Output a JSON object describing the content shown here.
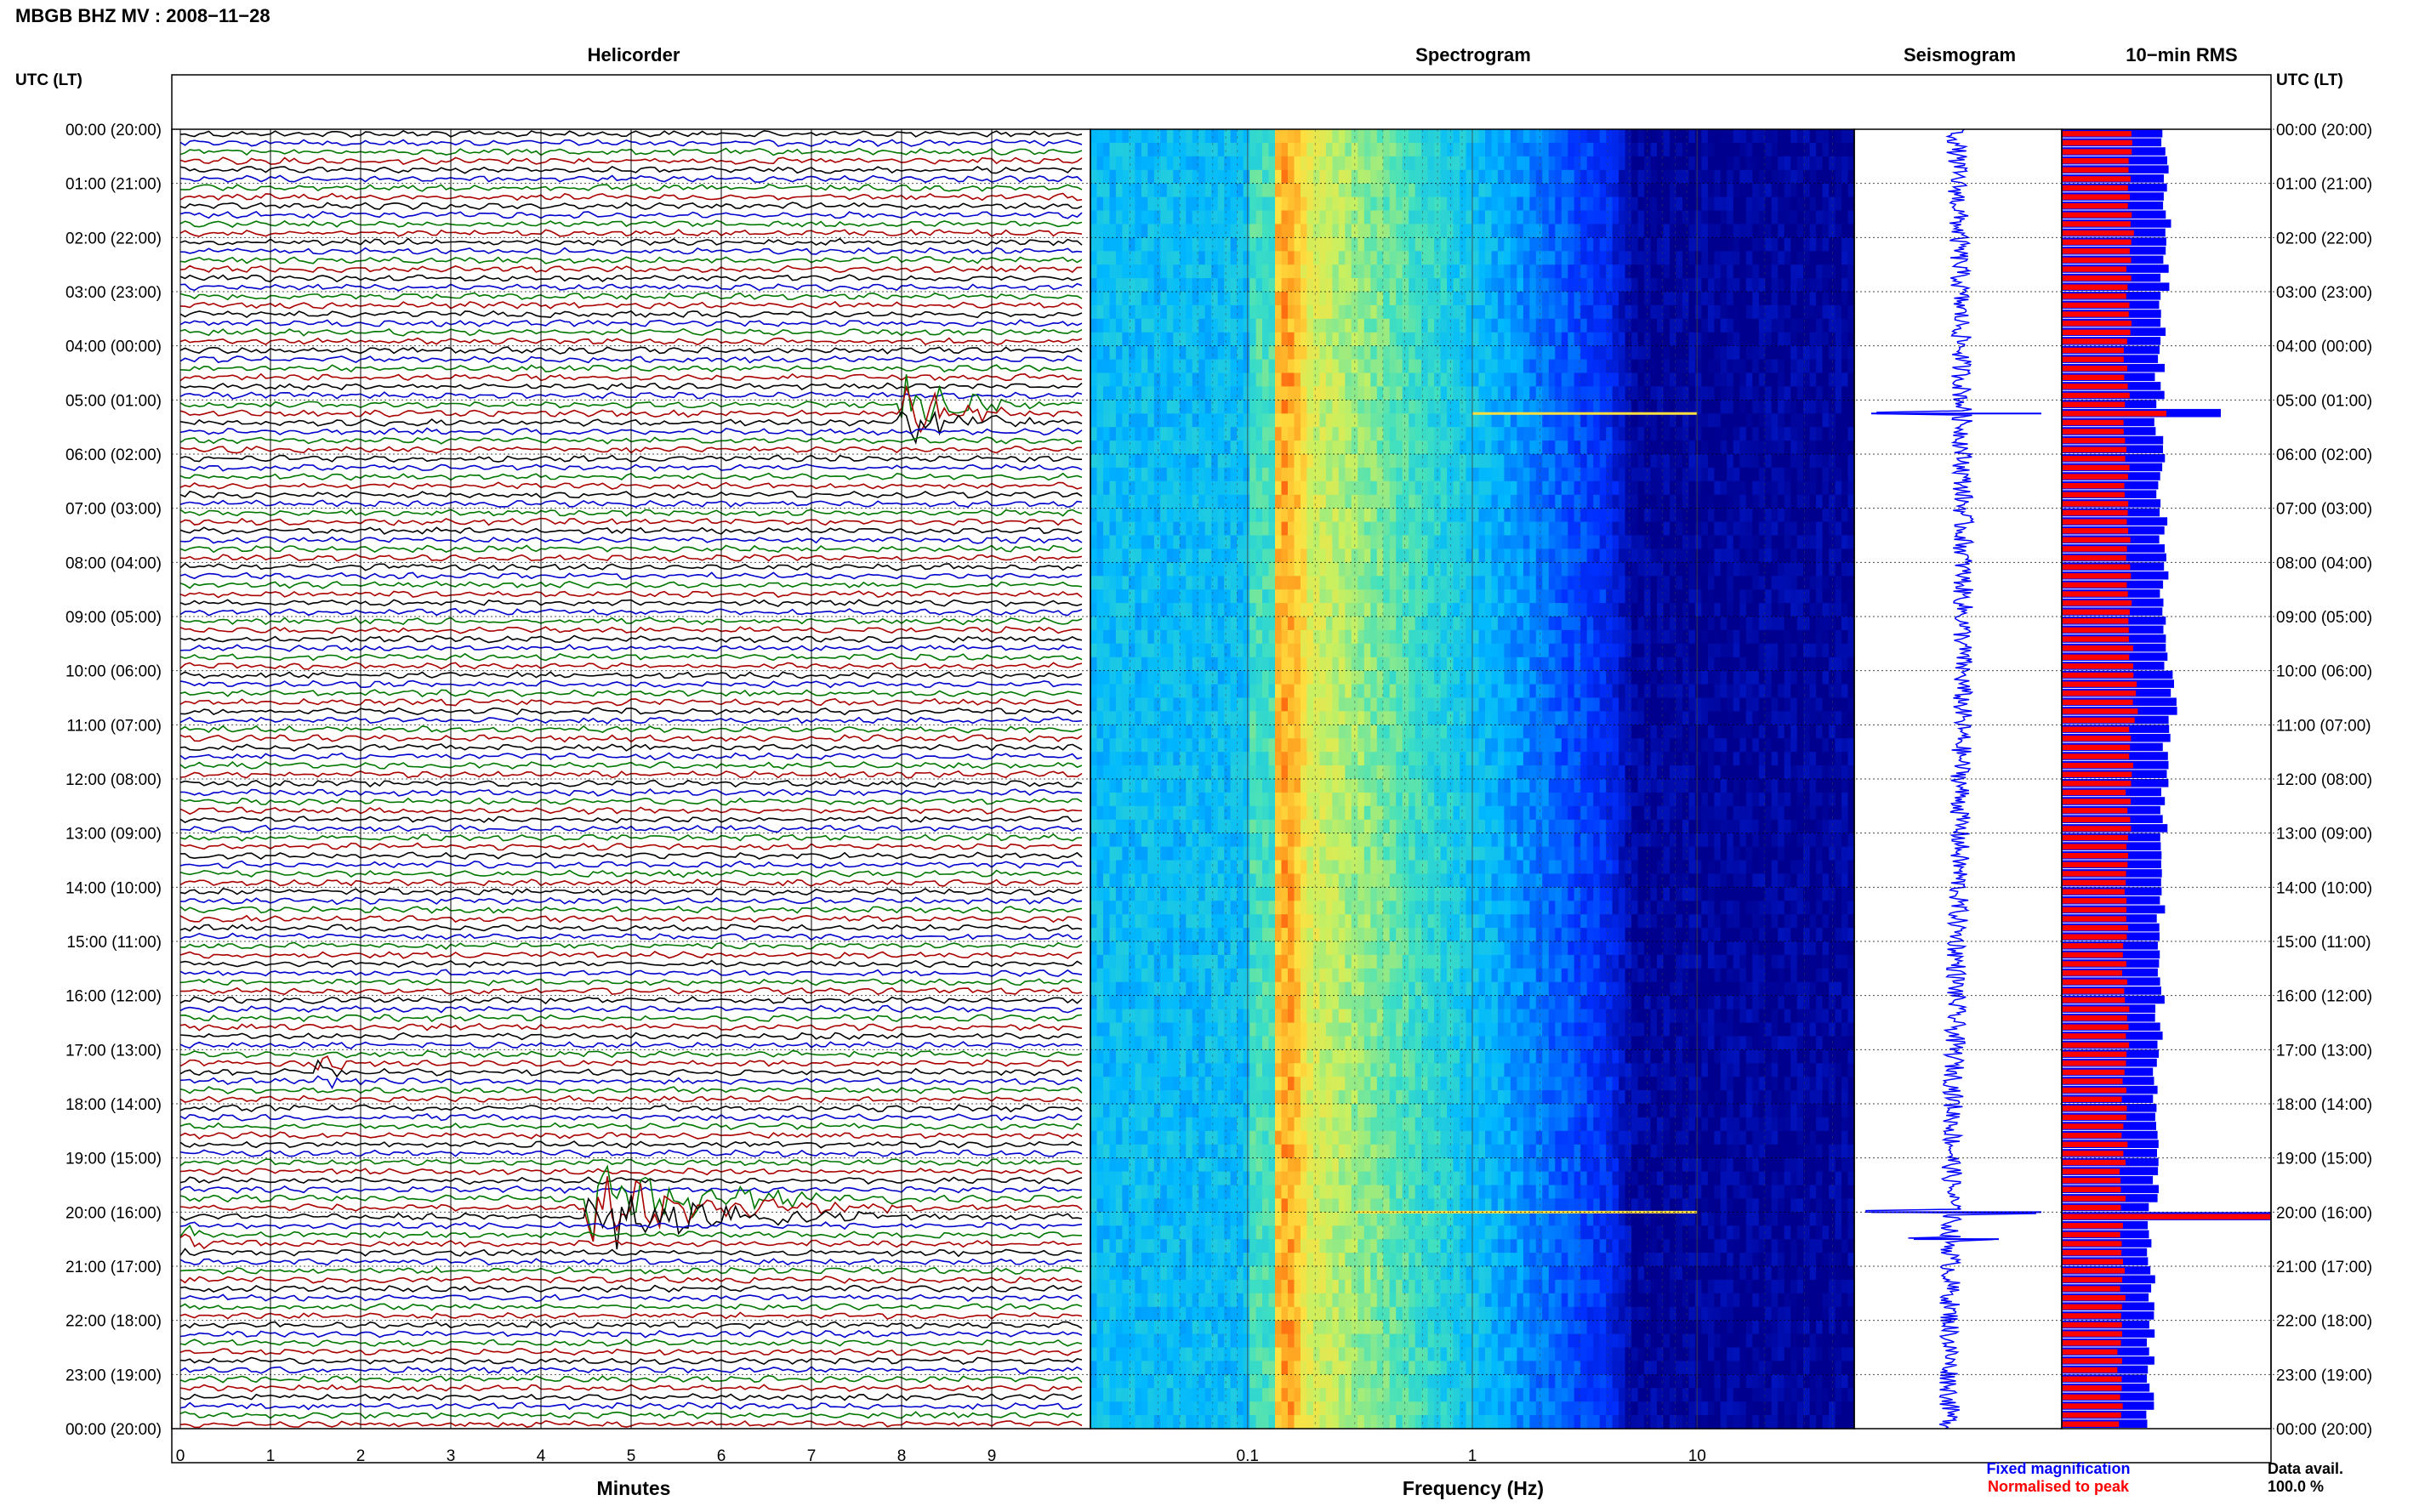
{
  "header": {
    "title": "MBGB BHZ MV : 2008−11−28"
  },
  "panels": {
    "helicorder": "Helicorder",
    "spectrogram": "Spectrogram",
    "seismogram": "Seismogram",
    "rms": "10−min RMS"
  },
  "axes": {
    "left_label": "UTC (LT)",
    "right_label": "UTC (LT)",
    "minutes_label": "Minutes",
    "frequency_label": "Frequency (Hz)"
  },
  "legend": {
    "fixed": "Fixed magnification",
    "normalised": "Normalised to peak",
    "fixed_color": "#0000ff",
    "normalised_color": "#ff0000"
  },
  "availability": {
    "label": "Data avail.",
    "value": "100.0 %"
  },
  "colors": {
    "trace_cycle": [
      "#000000",
      "#0000cc",
      "#007700",
      "#aa0000"
    ],
    "spectrogram_low": "#0000aa",
    "spectrogram_high": "#ff3300"
  },
  "chart_data": [
    {
      "type": "line",
      "name": "helicorder",
      "title": "Helicorder",
      "xlabel": "Minutes",
      "ylabel": "UTC (LT)",
      "xlim": [
        0,
        10
      ],
      "x_ticks": [
        "0",
        "1",
        "2",
        "3",
        "4",
        "5",
        "6",
        "7",
        "8",
        "9"
      ],
      "rows_per_hour": 6,
      "hours": 24,
      "time_labels": [
        "00:00 (20:00)",
        "01:00 (21:00)",
        "02:00 (22:00)",
        "03:00 (23:00)",
        "04:00 (00:00)",
        "05:00 (01:00)",
        "06:00 (02:00)",
        "07:00 (03:00)",
        "08:00 (04:00)",
        "09:00 (05:00)",
        "10:00 (06:00)",
        "11:00 (07:00)",
        "12:00 (08:00)",
        "13:00 (09:00)",
        "14:00 (10:00)",
        "15:00 (11:00)",
        "16:00 (12:00)",
        "17:00 (13:00)",
        "18:00 (14:00)",
        "19:00 (15:00)",
        "20:00 (16:00)",
        "21:00 (17:00)",
        "22:00 (18:00)",
        "23:00 (19:00)",
        "00:00 (20:00)"
      ],
      "events": [
        {
          "hour": 5.17,
          "minute_start": 8.0,
          "minute_end": 9.6,
          "amplitude": 3.2
        },
        {
          "hour": 17.33,
          "minute_start": 1.5,
          "minute_end": 2.1,
          "amplitude": 1.2
        },
        {
          "hour": 19.83,
          "minute_start": 4.5,
          "minute_end": 8.0,
          "amplitude": 4.0
        },
        {
          "hour": 20.5,
          "minute_start": 0.0,
          "minute_end": 0.6,
          "amplitude": 1.0
        }
      ]
    },
    {
      "type": "heatmap",
      "name": "spectrogram",
      "title": "Spectrogram",
      "xlabel": "Frequency (Hz)",
      "x_scale": "log",
      "xlim": [
        0.02,
        50
      ],
      "x_ticks": [
        "0.1",
        "1",
        "10"
      ],
      "microseism_peak_hz": 0.15,
      "spectral_lines": [
        {
          "hour": 5.25,
          "f_start": 1.0,
          "f_end": 10
        },
        {
          "hour": 20.0,
          "f_start": 0.3,
          "f_end": 10
        }
      ]
    },
    {
      "type": "line",
      "name": "seismogram",
      "title": "Seismogram",
      "spikes": [
        {
          "hour": 5.25,
          "amplitude": 1.0
        },
        {
          "hour": 20.0,
          "amplitude": 1.0
        },
        {
          "hour": 20.5,
          "amplitude": 0.5
        }
      ]
    },
    {
      "type": "bar",
      "name": "rms",
      "title": "10−min RMS",
      "orientation": "horizontal",
      "series": [
        {
          "name": "Fixed magnification",
          "color": "#0000ff",
          "values": [
            0.5,
            0.5,
            0.49,
            0.48,
            0.47,
            0.46,
            0.47,
            0.48,
            0.49,
            0.5,
            0.53,
            0.5,
            0.49,
            0.48,
            0.47,
            0.46,
            0.47,
            0.46,
            0.45,
            0.44,
            0.43,
            0.44,
            0.43,
            0.42
          ]
        },
        {
          "name": "Normalised to peak",
          "color": "#ff0000",
          "values": [
            0.33,
            0.33,
            0.32,
            0.32,
            0.31,
            0.3,
            0.31,
            0.32,
            0.32,
            0.33,
            0.35,
            0.33,
            0.32,
            0.32,
            0.31,
            0.3,
            0.31,
            0.3,
            0.3,
            0.29,
            0.28,
            0.29,
            0.28,
            0.28
          ]
        }
      ],
      "peak_rows": [
        {
          "hour": 5.17,
          "fixed": 0.76,
          "normalised": 0.5
        },
        {
          "hour": 20.0,
          "fixed": 1.0,
          "normalised": 1.0
        }
      ]
    }
  ]
}
